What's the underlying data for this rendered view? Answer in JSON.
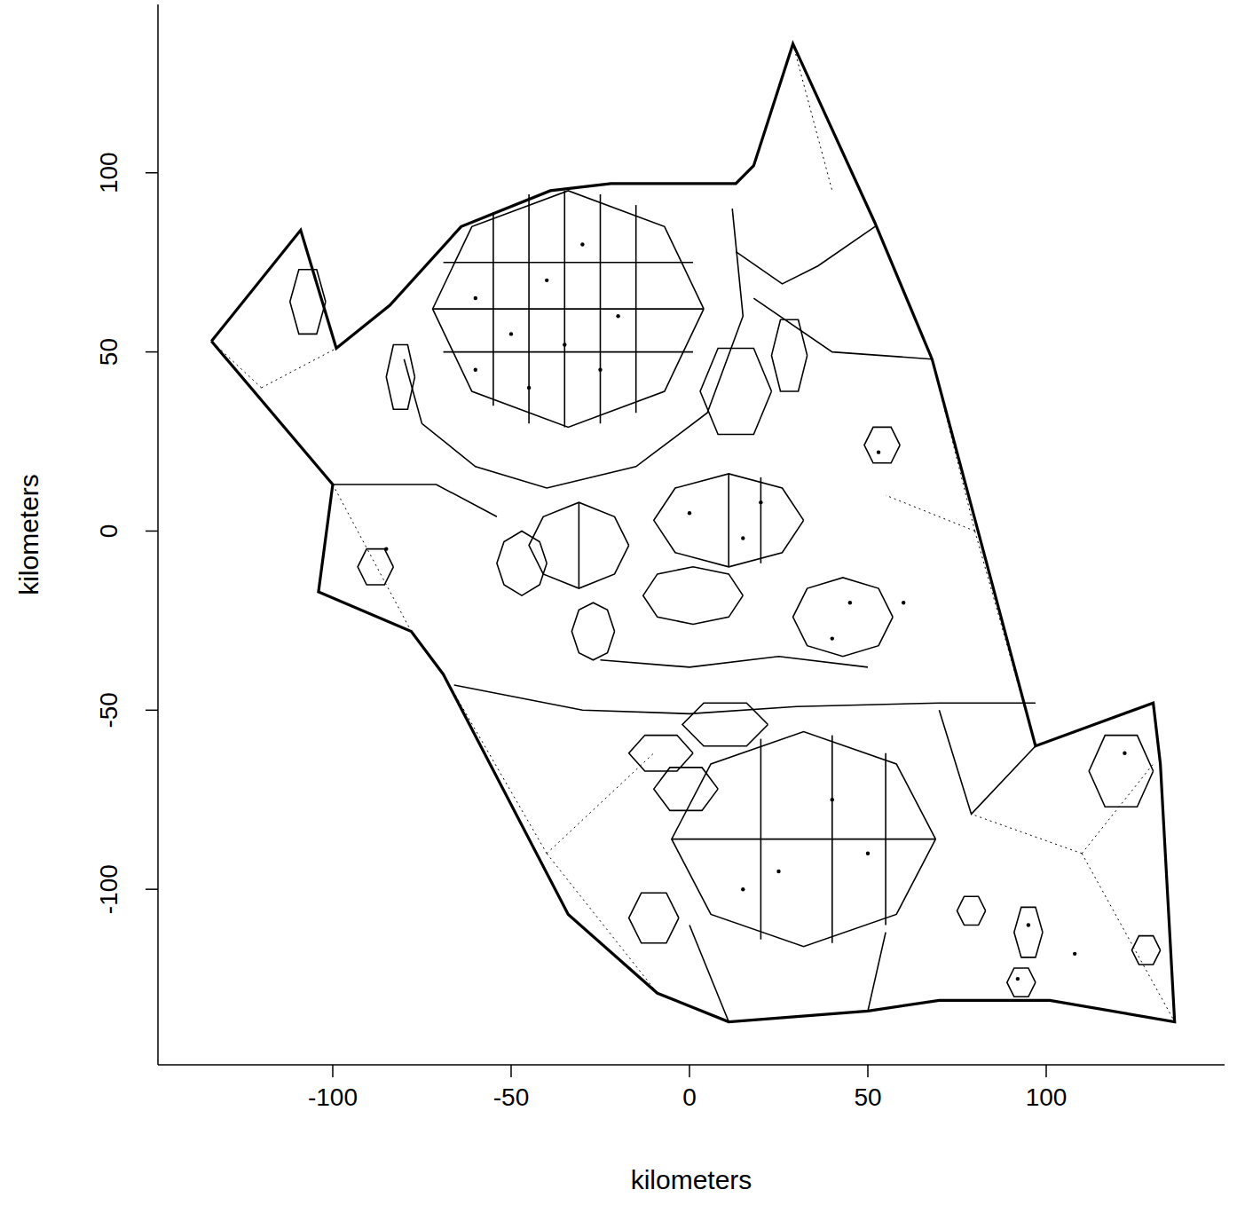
{
  "chart_data": {
    "type": "scatter",
    "xlabel": "kilometers",
    "ylabel": "kilometers",
    "xlim": [
      -149,
      150
    ],
    "ylim": [
      -149,
      147
    ],
    "xticks": [
      -100,
      -50,
      0,
      50,
      100
    ],
    "yticks": [
      -100,
      -50,
      0,
      50,
      100
    ],
    "color": "#000000",
    "series": [
      {
        "type": "boundary",
        "line_style": "solid",
        "x": [
          -134,
          -109,
          -99,
          -84,
          -64,
          -39,
          -22,
          13,
          18,
          29,
          52,
          68,
          97,
          130,
          132,
          136,
          101,
          70,
          50,
          11,
          -9,
          -34,
          -69,
          -78,
          -104,
          -100,
          -134
        ],
        "y": [
          53,
          84,
          51,
          63,
          85,
          95,
          97,
          97,
          102,
          136,
          86,
          48,
          -60,
          -48,
          -65,
          -137,
          -131,
          -131,
          -134,
          -137,
          -129,
          -107,
          -40,
          -28,
          -17,
          13,
          53
        ]
      },
      {
        "type": "line",
        "line_style": "solid",
        "x": [
          4,
          -7,
          -34,
          -61,
          -72,
          -61,
          -34,
          -7,
          4
        ],
        "y": [
          62,
          85,
          95,
          85,
          62,
          39,
          29,
          39,
          62
        ]
      },
      {
        "type": "line",
        "line_style": "solid",
        "x": [
          69,
          58,
          32,
          6,
          -5,
          6,
          32,
          58,
          69
        ],
        "y": [
          -86,
          -65,
          -56,
          -65,
          -86,
          -107,
          -116,
          -107,
          -86
        ]
      },
      {
        "type": "line",
        "line_style": "solid",
        "x": [
          32,
          26,
          11,
          -4,
          -10,
          -4,
          11,
          26,
          32
        ],
        "y": [
          3,
          12,
          16,
          12,
          3,
          -6,
          -10,
          -6,
          3
        ]
      },
      {
        "type": "line",
        "line_style": "solid",
        "x": [
          -17,
          -21,
          -31,
          -41,
          -45,
          -41,
          -31,
          -21,
          -17
        ],
        "y": [
          -4,
          4,
          8,
          4,
          -4,
          -12,
          -16,
          -12,
          -4
        ]
      },
      {
        "type": "line",
        "line_style": "solid",
        "x": [
          -40,
          -42,
          -47,
          -52,
          -54,
          -52,
          -47,
          -42,
          -40
        ],
        "y": [
          -9,
          -3,
          0,
          -3,
          -9,
          -15,
          -18,
          -15,
          -9
        ]
      },
      {
        "type": "line",
        "line_style": "solid",
        "x": [
          57,
          53,
          43,
          33,
          29,
          33,
          43,
          53,
          57
        ],
        "y": [
          -24,
          -16,
          -13,
          -16,
          -24,
          -32,
          -35,
          -32,
          -24
        ]
      },
      {
        "type": "line",
        "line_style": "solid",
        "x": [
          15,
          11,
          1,
          -9,
          -13,
          -9,
          1,
          11,
          15
        ],
        "y": [
          -18,
          -12,
          -10,
          -12,
          -18,
          -24,
          -26,
          -24,
          -18
        ]
      },
      {
        "type": "line",
        "line_style": "solid",
        "x": [
          -21,
          -23,
          -27,
          -31,
          -33,
          -31,
          -27,
          -23,
          -21
        ],
        "y": [
          -28,
          -22,
          -20,
          -22,
          -28,
          -34,
          -36,
          -34,
          -28
        ]
      },
      {
        "type": "line",
        "line_style": "solid",
        "x": [
          -83,
          -85.5,
          -90.5,
          -93,
          -90.5,
          -85.5,
          -83
        ],
        "y": [
          -10,
          -5,
          -5,
          -10,
          -15,
          -15,
          -10
        ]
      },
      {
        "type": "line",
        "line_style": "solid",
        "x": [
          22,
          16,
          4,
          -2,
          4,
          16,
          22
        ],
        "y": [
          -54,
          -48,
          -48,
          -54,
          -60,
          -60,
          -54
        ]
      },
      {
        "type": "line",
        "line_style": "solid",
        "x": [
          1,
          -3.5,
          -12.5,
          -17,
          -12.5,
          -3.5,
          1
        ],
        "y": [
          -62,
          -57,
          -57,
          -62,
          -67,
          -67,
          -62
        ]
      },
      {
        "type": "line",
        "line_style": "solid",
        "x": [
          8,
          3.5,
          -5.5,
          -10,
          -5.5,
          3.5,
          8
        ],
        "y": [
          -72,
          -66,
          -66,
          -72,
          -78,
          -78,
          -72
        ]
      },
      {
        "type": "line",
        "line_style": "solid",
        "x": [
          -3,
          -6.5,
          -13.5,
          -17,
          -13.5,
          -6.5,
          -3
        ],
        "y": [
          -108,
          -101,
          -101,
          -108,
          -115,
          -115,
          -108
        ]
      },
      {
        "type": "line",
        "line_style": "solid",
        "x": [
          130,
          125.5,
          116.5,
          112,
          116.5,
          125.5,
          130
        ],
        "y": [
          -67,
          -57,
          -57,
          -67,
          -77,
          -77,
          -67
        ]
      },
      {
        "type": "line",
        "line_style": "solid",
        "x": [
          83,
          81,
          77,
          75,
          77,
          81,
          83
        ],
        "y": [
          -106,
          -102,
          -102,
          -106,
          -110,
          -110,
          -106
        ]
      },
      {
        "type": "line",
        "line_style": "solid",
        "x": [
          99,
          97,
          93,
          91,
          93,
          97,
          99
        ],
        "y": [
          -112,
          -105,
          -105,
          -112,
          -119,
          -119,
          -112
        ]
      },
      {
        "type": "line",
        "line_style": "solid",
        "x": [
          97,
          95,
          91,
          89,
          91,
          95,
          97
        ],
        "y": [
          -126,
          -122,
          -122,
          -126,
          -130,
          -130,
          -126
        ]
      },
      {
        "type": "line",
        "line_style": "solid",
        "x": [
          132,
          130,
          126,
          124,
          126,
          130,
          132
        ],
        "y": [
          -117,
          -113,
          -113,
          -117,
          -121,
          -121,
          -117
        ]
      },
      {
        "type": "line",
        "line_style": "solid",
        "x": [
          -102,
          -104.5,
          -109.5,
          -112,
          -109.5,
          -104.5,
          -102
        ],
        "y": [
          64,
          73,
          73,
          64,
          55,
          55,
          64
        ]
      },
      {
        "type": "line",
        "line_style": "solid",
        "x": [
          -77,
          -79,
          -83,
          -85,
          -83,
          -79,
          -77
        ],
        "y": [
          43,
          52,
          52,
          43,
          34,
          34,
          43
        ]
      },
      {
        "type": "line",
        "line_style": "solid",
        "x": [
          23,
          18,
          8,
          3,
          8,
          18,
          23
        ],
        "y": [
          39,
          51,
          51,
          39,
          27,
          27,
          39
        ]
      },
      {
        "type": "line",
        "line_style": "solid",
        "x": [
          33,
          30.5,
          25.5,
          23,
          25.5,
          30.5,
          33
        ],
        "y": [
          49,
          59,
          59,
          49,
          39,
          39,
          49
        ]
      },
      {
        "type": "line",
        "line_style": "solid",
        "x": [
          59,
          56.5,
          51.5,
          49,
          51.5,
          56.5,
          59
        ],
        "y": [
          24,
          29,
          29,
          24,
          19,
          19,
          24
        ]
      },
      {
        "type": "line",
        "line_style": "solid",
        "x": [
          -66,
          -30,
          0,
          30,
          70,
          97
        ],
        "y": [
          -43,
          -50,
          -51,
          -49,
          -48,
          -48
        ]
      },
      {
        "type": "line",
        "line_style": "solid",
        "x": [
          -25,
          0,
          25,
          50
        ],
        "y": [
          -36,
          -38,
          -35,
          -38
        ]
      },
      {
        "type": "line",
        "line_style": "solid",
        "x": [
          -80,
          -75,
          -60,
          -40,
          -15,
          5,
          15,
          12
        ],
        "y": [
          48,
          30,
          18,
          12,
          18,
          33,
          60,
          90
        ]
      },
      {
        "type": "line",
        "line_style": "solid",
        "x": [
          68,
          40,
          18
        ],
        "y": [
          48,
          50,
          65
        ]
      },
      {
        "type": "line",
        "line_style": "solid",
        "x": [
          13,
          26,
          36,
          52
        ],
        "y": [
          78,
          69,
          74,
          85
        ]
      },
      {
        "type": "line",
        "line_style": "solid",
        "x": [
          -100,
          -71,
          -54
        ],
        "y": [
          13,
          13,
          4
        ]
      },
      {
        "type": "line",
        "line_style": "solid",
        "x": [
          0,
          11
        ],
        "y": [
          -110,
          -137
        ]
      },
      {
        "type": "line",
        "line_style": "solid",
        "x": [
          55,
          50
        ],
        "y": [
          -112,
          -134
        ]
      },
      {
        "type": "line",
        "line_style": "solid",
        "x": [
          70,
          79,
          97
        ],
        "y": [
          -50,
          -79,
          -60
        ]
      },
      {
        "type": "line",
        "line_style": "solid",
        "x": [
          -55,
          -55
        ],
        "y": [
          89,
          35
        ]
      },
      {
        "type": "line",
        "line_style": "solid",
        "x": [
          -45,
          -45
        ],
        "y": [
          94,
          30
        ]
      },
      {
        "type": "line",
        "line_style": "solid",
        "x": [
          -35,
          -35
        ],
        "y": [
          95,
          29
        ]
      },
      {
        "type": "line",
        "line_style": "solid",
        "x": [
          -25,
          -25
        ],
        "y": [
          94,
          30
        ]
      },
      {
        "type": "line",
        "line_style": "solid",
        "x": [
          -15,
          -15
        ],
        "y": [
          91,
          33
        ]
      },
      {
        "type": "line",
        "line_style": "solid",
        "x": [
          -69,
          1
        ],
        "y": [
          50,
          50
        ]
      },
      {
        "type": "line",
        "line_style": "solid",
        "x": [
          -72,
          4
        ],
        "y": [
          62,
          62
        ]
      },
      {
        "type": "line",
        "line_style": "solid",
        "x": [
          -69,
          1
        ],
        "y": [
          75,
          75
        ]
      },
      {
        "type": "line",
        "line_style": "solid",
        "x": [
          20,
          20
        ],
        "y": [
          -58,
          -114
        ]
      },
      {
        "type": "line",
        "line_style": "solid",
        "x": [
          40,
          40
        ],
        "y": [
          -57,
          -115
        ]
      },
      {
        "type": "line",
        "line_style": "solid",
        "x": [
          55,
          55
        ],
        "y": [
          -62,
          -110
        ]
      },
      {
        "type": "line",
        "line_style": "solid",
        "x": [
          -5,
          69
        ],
        "y": [
          -86,
          -86
        ]
      },
      {
        "type": "line",
        "line_style": "solid",
        "x": [
          11,
          11
        ],
        "y": [
          16,
          -10
        ]
      },
      {
        "type": "line",
        "line_style": "solid",
        "x": [
          20,
          20
        ],
        "y": [
          15,
          -9
        ]
      },
      {
        "type": "line",
        "line_style": "solid",
        "x": [
          -31,
          -31
        ],
        "y": [
          8,
          -16
        ]
      },
      {
        "type": "line",
        "line_style": "dotted",
        "x": [
          -134,
          -100
        ],
        "y": [
          53,
          13
        ]
      },
      {
        "type": "line",
        "line_style": "dotted",
        "x": [
          -100,
          -78
        ],
        "y": [
          13,
          -28
        ]
      },
      {
        "type": "line",
        "line_style": "dotted",
        "x": [
          29,
          40
        ],
        "y": [
          136,
          95
        ]
      },
      {
        "type": "line",
        "line_style": "dotted",
        "x": [
          80,
          68
        ],
        "y": [
          0,
          48
        ]
      },
      {
        "type": "line",
        "line_style": "dotted",
        "x": [
          80,
          97
        ],
        "y": [
          0,
          -60
        ]
      },
      {
        "type": "line",
        "line_style": "dotted",
        "x": [
          80,
          55
        ],
        "y": [
          0,
          10
        ]
      },
      {
        "type": "line",
        "line_style": "dotted",
        "x": [
          110,
          136
        ],
        "y": [
          -90,
          -137
        ]
      },
      {
        "type": "line",
        "line_style": "dotted",
        "x": [
          110,
          130
        ],
        "y": [
          -90,
          -65
        ]
      },
      {
        "type": "line",
        "line_style": "dotted",
        "x": [
          110,
          79
        ],
        "y": [
          -90,
          -79
        ]
      },
      {
        "type": "line",
        "line_style": "dotted",
        "x": [
          -40,
          -69
        ],
        "y": [
          -90,
          -40
        ]
      },
      {
        "type": "line",
        "line_style": "dotted",
        "x": [
          -40,
          -9
        ],
        "y": [
          -90,
          -129
        ]
      },
      {
        "type": "line",
        "line_style": "dotted",
        "x": [
          -40,
          -10
        ],
        "y": [
          -90,
          -62
        ]
      },
      {
        "type": "line",
        "line_style": "dotted",
        "x": [
          -120,
          -134
        ],
        "y": [
          40,
          53
        ]
      },
      {
        "type": "line",
        "line_style": "dotted",
        "x": [
          -120,
          -99
        ],
        "y": [
          40,
          51
        ]
      },
      {
        "type": "scatter",
        "marker": "dot",
        "x": [
          -40,
          -50,
          -30,
          -20,
          -60,
          -45,
          -25,
          0,
          15,
          20,
          45,
          40,
          25,
          40,
          15,
          50,
          53,
          60,
          -85,
          122,
          92,
          95,
          108,
          -60,
          -35
        ],
        "y": [
          70,
          55,
          80,
          60,
          45,
          40,
          45,
          5,
          -2,
          8,
          -20,
          -30,
          -95,
          -75,
          -100,
          -90,
          22,
          -20,
          -5,
          -62,
          -125,
          -110,
          -118,
          65,
          52
        ]
      }
    ]
  }
}
